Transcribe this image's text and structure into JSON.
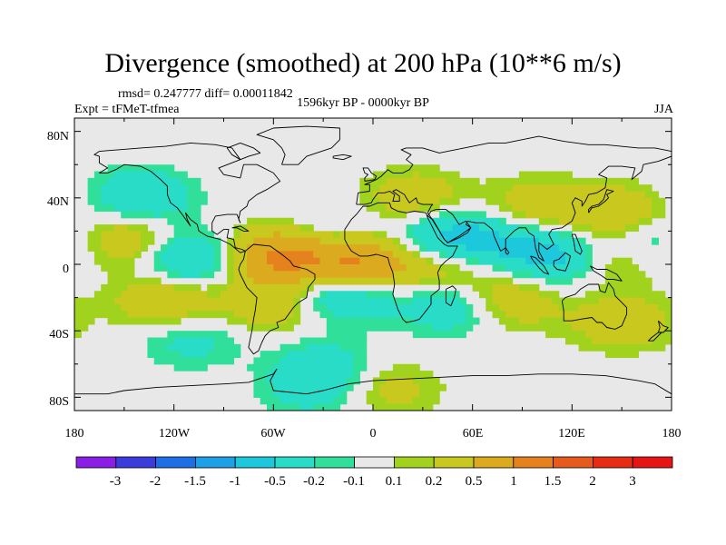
{
  "header": {
    "title": "Divergence (smoothed) at 200 hPa (10**6 m/s)",
    "stats": "rmsd= 0.247777 diff= 0.00011842",
    "experiment": "Expt = tFMeT-tfmea",
    "period": "1596kyr BP - 0000kyr BP",
    "season": "JJA"
  },
  "map": {
    "lat_labels": [
      "80N",
      "40N",
      "0",
      "40S",
      "80S"
    ],
    "lon_labels": [
      "180",
      "120W",
      "60W",
      "0",
      "60E",
      "120E",
      "180"
    ],
    "background_color": "#e8e8e8"
  },
  "colorbar": {
    "labels": [
      "-3",
      "-2",
      "-1.5",
      "-1",
      "-0.5",
      "-0.2",
      "-0.1",
      "0.1",
      "0.2",
      "0.5",
      "1",
      "1.5",
      "2",
      "3"
    ],
    "colors": [
      "#8a1ee6",
      "#3c3cdc",
      "#1e6ee6",
      "#1ea0e6",
      "#1ec8dc",
      "#28dcc8",
      "#30e09a",
      "#e8e8e8",
      "#a0d21e",
      "#c8c81e",
      "#dcaa1e",
      "#e6821e",
      "#e65a1e",
      "#e62d14",
      "#e61414"
    ]
  },
  "chart_data": {
    "type": "heatmap",
    "title": "Divergence (smoothed) at 200 hPa (10**6 m/s)",
    "variable": "divergence",
    "level": "200 hPa",
    "units": "10**6 m/s",
    "season": "JJA",
    "period": "1596kyr BP - 0000kyr BP",
    "lon_range": [
      -180,
      180
    ],
    "lat_range": [
      -90,
      90
    ],
    "levels": [
      -3,
      -2,
      -1.5,
      -1,
      -0.5,
      -0.2,
      -0.1,
      0.1,
      0.2,
      0.5,
      1,
      1.5,
      2,
      3
    ],
    "features": [
      {
        "lon": 25,
        "lat": 40,
        "value": 0.4
      },
      {
        "lon": 100,
        "lat": 35,
        "value": 0.4
      },
      {
        "lon": 150,
        "lat": 30,
        "value": 0.5
      },
      {
        "lon": -150,
        "lat": 15,
        "value": 0.5
      },
      {
        "lon": -55,
        "lat": 5,
        "value": 1.2
      },
      {
        "lon": -10,
        "lat": 0,
        "value": 1.3
      },
      {
        "lon": 45,
        "lat": 0,
        "value": 0.5
      },
      {
        "lon": 140,
        "lat": 5,
        "value": 0.6
      },
      {
        "lon": -125,
        "lat": -22,
        "value": 0.5
      },
      {
        "lon": -60,
        "lat": -25,
        "value": 0.4
      },
      {
        "lon": 80,
        "lat": -22,
        "value": 0.5
      },
      {
        "lon": 150,
        "lat": -35,
        "value": 0.4
      },
      {
        "lon": 10,
        "lat": -75,
        "value": 0.3
      },
      {
        "lon": -140,
        "lat": 40,
        "value": -0.5
      },
      {
        "lon": -110,
        "lat": 3,
        "value": -0.6
      },
      {
        "lon": -30,
        "lat": 15,
        "value": -0.4
      },
      {
        "lon": -18,
        "lat": -15,
        "value": -0.8
      },
      {
        "lon": 40,
        "lat": 15,
        "value": -0.6
      },
      {
        "lon": 70,
        "lat": 12,
        "value": -0.5
      },
      {
        "lon": 115,
        "lat": 5,
        "value": -0.8
      },
      {
        "lon": 165,
        "lat": 15,
        "value": -0.5
      },
      {
        "lon": 50,
        "lat": -25,
        "value": -0.5
      },
      {
        "lon": -30,
        "lat": -60,
        "value": -0.3
      },
      {
        "lon": -110,
        "lat": -45,
        "value": -0.3
      },
      {
        "lon": -35,
        "lat": -75,
        "value": -0.3
      }
    ]
  }
}
